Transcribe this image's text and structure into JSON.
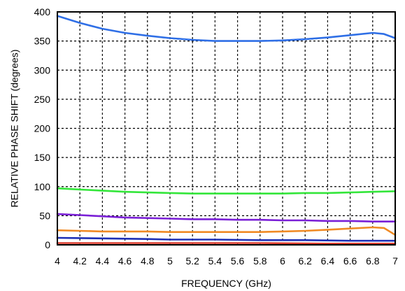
{
  "chart_data": {
    "type": "line",
    "title": "",
    "xlabel": "FREQUENCY (GHz)",
    "ylabel": "RELATIVE PHASE SHIFT  (degrees)",
    "xlim": [
      4,
      7
    ],
    "ylim": [
      0,
      400
    ],
    "grid": true,
    "x_ticks": [
      4,
      4.2,
      4.4,
      4.6,
      4.8,
      5,
      5.2,
      5.4,
      5.6,
      5.8,
      6,
      6.2,
      6.4,
      6.6,
      6.8,
      7
    ],
    "x_tick_labels": [
      "4",
      "4.2",
      "4.4",
      "4.6",
      "4.8",
      "5",
      "5.2",
      "5.4",
      "5.6",
      "5.8",
      "6",
      "6.2",
      "6.4",
      "6.6",
      "6.8",
      "7"
    ],
    "y_ticks": [
      0,
      50,
      100,
      150,
      200,
      250,
      300,
      350,
      400
    ],
    "y_tick_labels": [
      "0",
      "50",
      "100",
      "150",
      "200",
      "250",
      "300",
      "350",
      "400"
    ],
    "series": [
      {
        "color": "#2f6fe6",
        "x": [
          4.0,
          4.2,
          4.4,
          4.6,
          4.8,
          5.0,
          5.2,
          5.4,
          5.6,
          5.8,
          6.0,
          6.2,
          6.4,
          6.6,
          6.8,
          6.9,
          7.0
        ],
        "y": [
          393,
          381,
          371,
          364,
          359,
          355,
          352,
          350,
          350,
          350,
          351,
          353,
          356,
          360,
          364,
          362,
          355
        ]
      },
      {
        "color": "#33e63a",
        "x": [
          4.0,
          4.2,
          4.4,
          4.6,
          4.8,
          5.0,
          5.2,
          5.4,
          5.6,
          5.8,
          6.0,
          6.2,
          6.4,
          6.6,
          6.8,
          7.0
        ],
        "y": [
          97,
          95,
          93,
          91,
          90,
          89,
          88,
          88,
          88,
          88,
          88,
          89,
          89,
          90,
          91,
          92
        ]
      },
      {
        "color": "#7a1fd6",
        "x": [
          4.0,
          4.2,
          4.4,
          4.6,
          4.8,
          5.0,
          5.2,
          5.4,
          5.6,
          5.8,
          6.0,
          6.2,
          6.4,
          6.6,
          6.8,
          7.0
        ],
        "y": [
          53,
          51,
          49,
          47,
          46,
          45,
          44,
          44,
          43,
          43,
          42,
          42,
          41,
          41,
          40,
          40
        ]
      },
      {
        "color": "#f08a24",
        "x": [
          4.0,
          4.2,
          4.4,
          4.6,
          4.8,
          5.0,
          5.2,
          5.4,
          5.6,
          5.8,
          6.0,
          6.2,
          6.4,
          6.6,
          6.8,
          6.9,
          7.0
        ],
        "y": [
          25,
          24,
          23,
          23,
          23,
          22,
          22,
          22,
          22,
          22,
          23,
          24,
          26,
          28,
          30,
          29,
          17
        ]
      },
      {
        "color": "#1d2fb5",
        "x": [
          4.0,
          4.4,
          4.8,
          5.0,
          5.4,
          5.8,
          6.2,
          6.6,
          7.0
        ],
        "y": [
          12,
          11,
          10,
          9,
          9,
          8,
          8,
          7,
          7
        ]
      },
      {
        "color": "#d93a2b",
        "x": [
          4.0,
          4.6,
          5.2,
          5.8,
          6.4,
          7.0
        ],
        "y": [
          3,
          3,
          3,
          3,
          2,
          2
        ]
      }
    ]
  }
}
